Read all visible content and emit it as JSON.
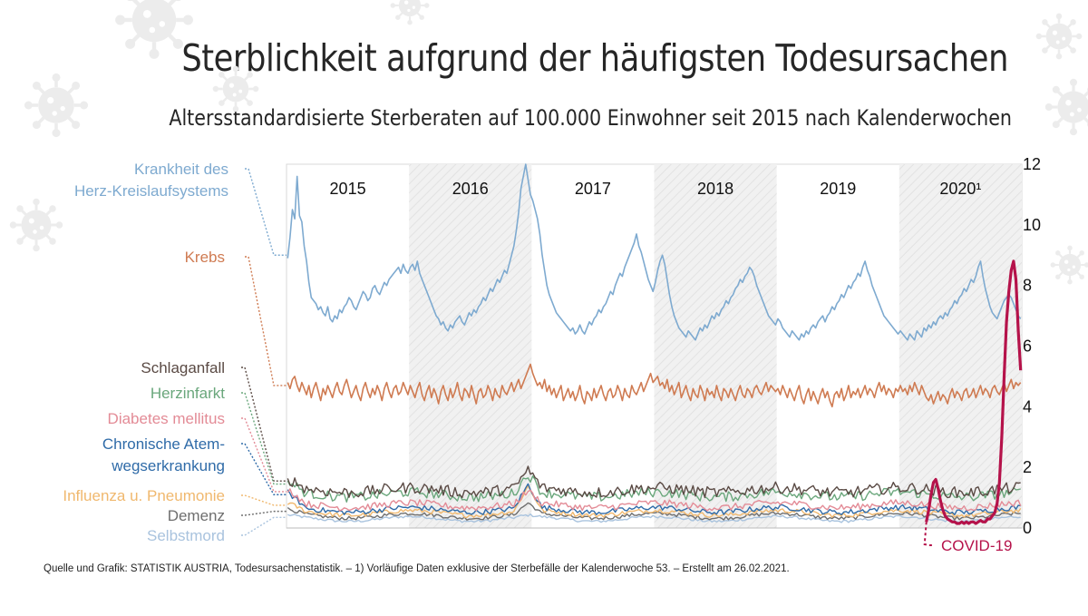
{
  "header": {
    "title": "Sterblichkeit aufgrund der häufigsten Todesursachen",
    "subtitle": "Altersstandardisierte Sterberaten auf 100.000 Einwohner seit 2015 nach Kalenderwochen"
  },
  "footer": {
    "source": "Quelle und Grafik: STATISTIK AUSTRIA, Todesursachenstatistik. – 1) Vorläufige Daten exklusive der Sterbefälle der Kalenderwoche 53. – Erstellt am 26.02.2021."
  },
  "colors": {
    "herz": "#7eaad0",
    "krebs": "#cf7b52",
    "schlaganfall": "#5a4a44",
    "herzinfarkt": "#6aa77c",
    "diabetes": "#e38b96",
    "atemweg": "#2f6ba8",
    "influenza": "#f0b86e",
    "demenz": "#6e6e6e",
    "selbstmord": "#a9c3de",
    "covid": "#b5124a"
  },
  "chart_data": {
    "type": "line",
    "title": "Sterblichkeit aufgrund der häufigsten Todesursachen",
    "subtitle": "Altersstandardisierte Sterberaten auf 100.000 Einwohner seit 2015 nach Kalenderwochen",
    "x_unit": "Kalenderwoche",
    "year_labels": [
      "2015",
      "2016",
      "2017",
      "2018",
      "2019",
      "2020¹"
    ],
    "shaded_years": [
      "2016",
      "2018",
      "2020¹"
    ],
    "ylim": [
      0,
      12
    ],
    "y_ticks": [
      "0",
      "2",
      "4",
      "6",
      "8",
      "10",
      "12"
    ],
    "y_axis_side": "right",
    "grid": false,
    "series": [
      {
        "name": "Krankheit des Herz-Kreislaufsystems",
        "color_key": "herz",
        "label_lines": [
          "Krankheit des",
          "Herz-Kreislaufsystems"
        ],
        "values_by_year": {
          "2015": [
            8.9,
            9.6,
            10.5,
            10.2,
            11.6,
            10.3,
            10.1,
            9.3,
            8.8,
            8.1,
            7.6,
            7.5,
            7.4,
            7.2,
            7.3,
            7.1,
            7.0,
            7.3,
            6.9,
            6.8,
            7.0,
            6.9,
            7.2,
            7.1,
            7.3,
            7.4,
            7.6,
            7.5,
            7.3,
            7.2,
            7.4,
            7.6,
            7.8,
            7.7,
            7.5,
            7.6,
            7.9,
            8.0,
            7.8,
            7.7,
            7.9,
            8.1,
            8.0,
            8.2,
            8.3,
            8.4,
            8.5,
            8.6,
            8.4,
            8.7,
            8.5,
            8.4
          ],
          "2016": [
            8.6,
            8.7,
            8.5,
            8.8,
            8.4,
            8.2,
            8.0,
            7.8,
            7.6,
            7.4,
            7.2,
            7.0,
            6.9,
            6.7,
            6.8,
            6.6,
            6.5,
            6.7,
            6.6,
            6.8,
            6.9,
            7.0,
            6.8,
            6.7,
            6.9,
            7.1,
            7.0,
            7.2,
            7.1,
            7.3,
            7.4,
            7.6,
            7.5,
            7.7,
            7.9,
            7.8,
            8.0,
            8.2,
            8.1,
            8.3,
            8.5,
            8.4,
            8.7,
            9.0,
            9.3,
            9.8,
            10.4,
            11.2,
            11.6,
            12.0,
            11.5,
            11.0
          ],
          "2017": [
            10.8,
            10.5,
            10.2,
            9.7,
            9.0,
            8.5,
            8.0,
            7.7,
            7.5,
            7.3,
            7.1,
            7.0,
            6.9,
            6.8,
            6.7,
            6.6,
            6.5,
            6.6,
            6.4,
            6.5,
            6.7,
            6.5,
            6.4,
            6.6,
            6.8,
            6.7,
            6.9,
            7.0,
            7.2,
            7.1,
            7.3,
            7.4,
            7.6,
            7.8,
            7.7,
            8.0,
            8.2,
            8.4,
            8.3,
            8.6,
            8.8,
            9.0,
            9.2,
            9.4,
            9.7,
            9.3,
            9.1,
            8.8,
            8.5,
            8.2,
            8.0,
            7.8
          ],
          "2018": [
            8.1,
            8.5,
            8.8,
            9.0,
            8.7,
            8.2,
            7.7,
            7.3,
            7.0,
            6.8,
            6.6,
            6.5,
            6.4,
            6.3,
            6.5,
            6.4,
            6.3,
            6.2,
            6.4,
            6.6,
            6.5,
            6.7,
            6.6,
            6.8,
            7.0,
            6.9,
            7.1,
            7.0,
            7.2,
            7.3,
            7.5,
            7.4,
            7.6,
            7.7,
            7.9,
            8.0,
            8.2,
            8.1,
            8.3,
            8.4,
            8.6,
            8.5,
            8.3,
            8.0,
            7.8,
            7.6,
            7.4,
            7.2,
            7.0,
            6.9,
            6.8,
            6.7
          ],
          "2019": [
            6.9,
            6.8,
            6.6,
            6.5,
            6.4,
            6.3,
            6.5,
            6.4,
            6.3,
            6.2,
            6.4,
            6.3,
            6.5,
            6.4,
            6.6,
            6.7,
            6.6,
            6.8,
            6.9,
            7.0,
            6.8,
            7.0,
            7.1,
            7.3,
            7.2,
            7.4,
            7.5,
            7.7,
            7.6,
            7.8,
            8.0,
            7.9,
            8.1,
            8.2,
            8.4,
            8.3,
            8.6,
            8.8,
            8.5,
            8.3,
            8.0,
            7.8,
            7.6,
            7.4,
            7.2,
            7.0,
            6.9,
            6.8,
            6.7,
            6.6,
            6.5,
            6.4
          ],
          "2020¹": [
            6.5,
            6.4,
            6.3,
            6.2,
            6.4,
            6.3,
            6.2,
            6.5,
            6.4,
            6.3,
            6.6,
            6.5,
            6.7,
            6.6,
            6.8,
            6.7,
            6.9,
            7.0,
            6.9,
            7.1,
            7.0,
            7.2,
            7.3,
            7.5,
            7.4,
            7.6,
            7.7,
            7.9,
            7.8,
            8.0,
            8.2,
            8.1,
            8.3,
            8.6,
            8.8,
            8.3,
            7.9,
            7.6,
            7.3,
            7.1,
            7.0,
            6.9,
            7.1,
            7.3,
            7.5,
            7.6,
            7.7,
            7.6,
            7.4,
            7.2,
            7.0,
            6.9
          ]
        }
      },
      {
        "name": "Krebs",
        "color_key": "krebs",
        "label_lines": [
          "Krebs"
        ],
        "values_by_year": {
          "2015": [
            4.8,
            4.6,
            4.9,
            5.0,
            4.7,
            4.5,
            4.8,
            4.6,
            4.4,
            4.7,
            4.3,
            4.6,
            4.8,
            4.5,
            4.2,
            4.6,
            4.4,
            4.7,
            4.5,
            4.3,
            4.6,
            4.8,
            4.5,
            4.4,
            4.7,
            4.9,
            4.6,
            4.3,
            4.5,
            4.7,
            4.4,
            4.2,
            4.6,
            4.8,
            4.5,
            4.3,
            4.6,
            4.4,
            4.7,
            4.5,
            4.2,
            4.6,
            4.8,
            4.5,
            4.3,
            4.6,
            4.7,
            4.4,
            4.5,
            4.8,
            4.6,
            4.4
          ],
          "2016": [
            4.7,
            4.5,
            4.3,
            4.6,
            4.8,
            4.4,
            4.2,
            4.5,
            4.7,
            4.3,
            4.6,
            4.4,
            4.1,
            4.5,
            4.7,
            4.4,
            4.2,
            4.6,
            4.3,
            4.5,
            4.8,
            4.4,
            4.2,
            4.6,
            4.5,
            4.3,
            4.7,
            4.4,
            4.1,
            4.5,
            4.6,
            4.3,
            4.4,
            4.7,
            4.5,
            4.2,
            4.6,
            4.4,
            4.3,
            4.7,
            4.5,
            4.4,
            4.6,
            4.8,
            4.5,
            4.7,
            4.9,
            4.6,
            4.8,
            5.0,
            5.2,
            5.4
          ],
          "2017": [
            5.1,
            4.9,
            4.7,
            4.8,
            4.6,
            4.9,
            4.5,
            4.7,
            4.4,
            4.6,
            4.3,
            4.5,
            4.7,
            4.2,
            4.4,
            4.6,
            4.3,
            4.5,
            4.2,
            4.4,
            4.7,
            4.3,
            4.1,
            4.5,
            4.4,
            4.2,
            4.6,
            4.3,
            4.5,
            4.7,
            4.4,
            4.2,
            4.5,
            4.6,
            4.3,
            4.4,
            4.7,
            4.5,
            4.2,
            4.6,
            4.4,
            4.3,
            4.7,
            4.5,
            4.4,
            4.6,
            4.8,
            4.5,
            4.7,
            4.9,
            5.1,
            4.8
          ],
          "2018": [
            4.9,
            5.0,
            4.7,
            4.8,
            4.6,
            4.9,
            4.5,
            4.7,
            4.4,
            4.6,
            4.8,
            4.3,
            4.5,
            4.7,
            4.4,
            4.2,
            4.6,
            4.4,
            4.3,
            4.7,
            4.5,
            4.2,
            4.6,
            4.4,
            4.5,
            4.3,
            4.7,
            4.4,
            4.2,
            4.6,
            4.5,
            4.3,
            4.6,
            4.4,
            4.2,
            4.5,
            4.7,
            4.4,
            4.3,
            4.6,
            4.5,
            4.3,
            4.6,
            4.7,
            4.5,
            4.4,
            4.6,
            4.8,
            4.5,
            4.7,
            4.6,
            4.5
          ],
          "2019": [
            4.6,
            4.4,
            4.7,
            4.5,
            4.3,
            4.6,
            4.4,
            4.2,
            4.5,
            4.7,
            4.3,
            4.1,
            4.4,
            4.6,
            4.2,
            4.5,
            4.3,
            4.1,
            4.4,
            4.6,
            4.3,
            4.5,
            4.2,
            4.0,
            4.4,
            4.5,
            4.3,
            4.6,
            4.2,
            4.4,
            4.7,
            4.3,
            4.5,
            4.4,
            4.6,
            4.3,
            4.5,
            4.7,
            4.4,
            4.6,
            4.5,
            4.3,
            4.6,
            4.8,
            4.5,
            4.7,
            4.4,
            4.6,
            4.5,
            4.3,
            4.6,
            4.5
          ],
          "2020¹": [
            4.7,
            4.5,
            4.6,
            4.4,
            4.7,
            4.5,
            4.8,
            4.6,
            4.4,
            4.7,
            4.5,
            4.3,
            4.2,
            4.4,
            4.1,
            4.3,
            4.5,
            4.2,
            4.4,
            4.3,
            4.1,
            4.4,
            4.6,
            4.3,
            4.5,
            4.4,
            4.2,
            4.5,
            4.6,
            4.3,
            4.4,
            4.6,
            4.3,
            4.5,
            4.7,
            4.4,
            4.6,
            4.5,
            4.3,
            4.6,
            4.7,
            4.5,
            4.4,
            4.6,
            4.8,
            4.5,
            4.7,
            4.9,
            4.6,
            4.8,
            4.7,
            4.8
          ]
        }
      },
      {
        "name": "Schlaganfall",
        "color_key": "schlaganfall",
        "label_lines": [
          "Schlaganfall"
        ],
        "level": 1.25,
        "start": 1.55,
        "peak2017": 1.85
      },
      {
        "name": "Herzinfarkt",
        "color_key": "herzinfarkt",
        "label_lines": [
          "Herzinfarkt"
        ],
        "level": 1.1,
        "start": 1.45,
        "peak2017": 1.7
      },
      {
        "name": "Diabetes mellitus",
        "color_key": "diabetes",
        "label_lines": [
          "Diabetes mellitus"
        ],
        "level": 0.75,
        "start": 1.2,
        "peak2017": 1.15
      },
      {
        "name": "Chronische Atemwegserkrankung",
        "color_key": "atemweg",
        "label_lines": [
          "Chronische Atem-",
          "wegserkrankung"
        ],
        "level": 0.6,
        "start": 1.1,
        "peak2017": 1.35
      },
      {
        "name": "Influenza u. Pneumonie",
        "color_key": "influenza",
        "label_lines": [
          "Influenza u. Pneumonie"
        ],
        "level": 0.5,
        "start": 0.75,
        "peak2017": 1.3
      },
      {
        "name": "Demenz",
        "color_key": "demenz",
        "label_lines": [
          "Demenz"
        ],
        "level": 0.4,
        "start": 0.55,
        "peak2017": 0.75
      },
      {
        "name": "Selbstmord",
        "color_key": "selbstmord",
        "label_lines": [
          "Selbstmord"
        ],
        "level": 0.3,
        "start": 0.35,
        "peak2017": 0.35
      },
      {
        "name": "COVID-19",
        "color_key": "covid",
        "label_lines": [
          "COVID-19"
        ],
        "start_week_2020": 11,
        "values": [
          0.2,
          0.6,
          1.1,
          1.5,
          1.6,
          1.3,
          0.9,
          0.6,
          0.4,
          0.3,
          0.25,
          0.2,
          0.2,
          0.15,
          0.15,
          0.2,
          0.15,
          0.2,
          0.15,
          0.2,
          0.2,
          0.15,
          0.2,
          0.25,
          0.2,
          0.2,
          0.3,
          0.3,
          0.4,
          0.5,
          0.8,
          1.5,
          3.0,
          5.0,
          6.8,
          7.8,
          8.5,
          8.8,
          8.2,
          6.5,
          5.2
        ]
      }
    ]
  }
}
